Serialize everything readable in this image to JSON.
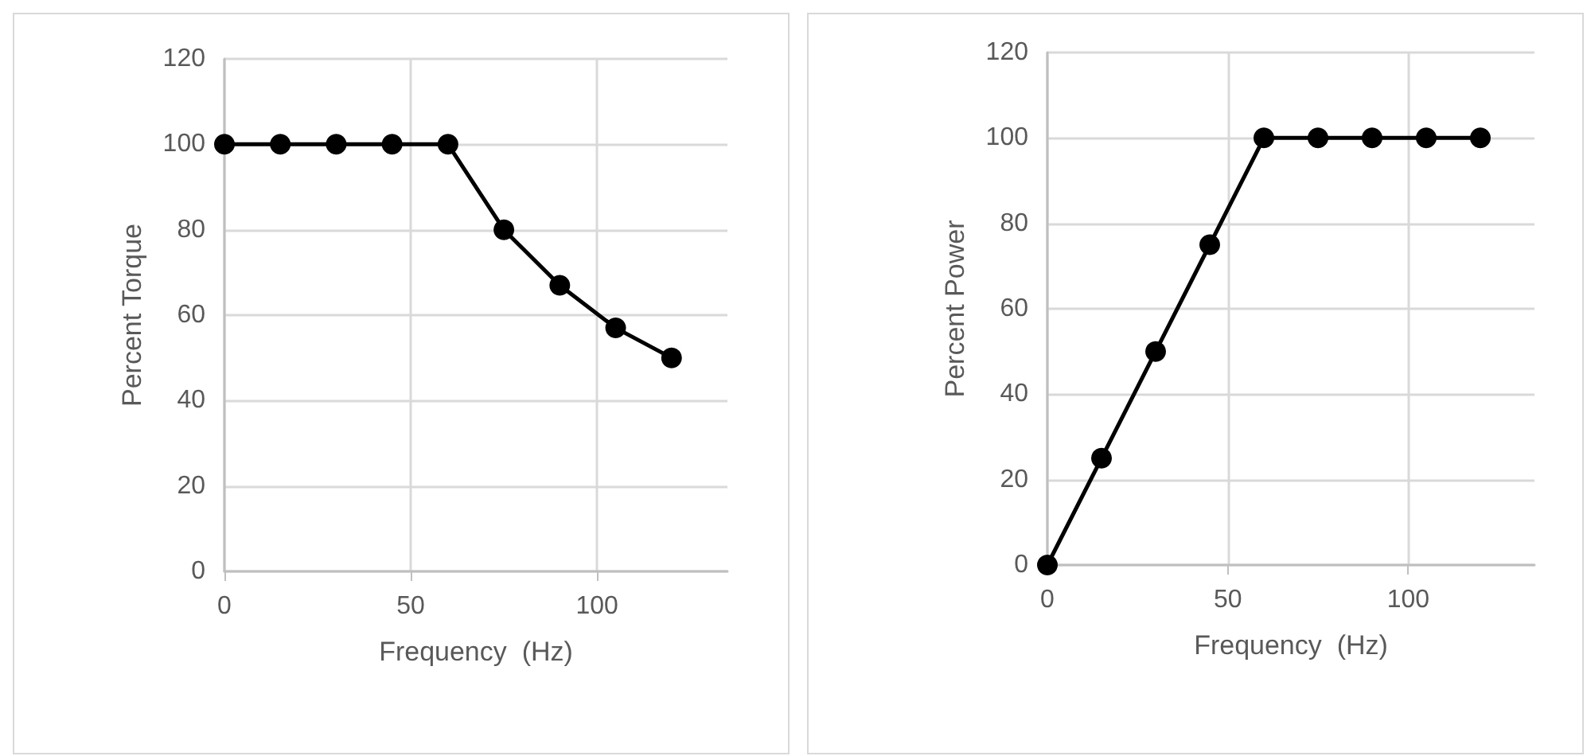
{
  "chart_data": [
    {
      "type": "line",
      "xlabel": "Frequency  (Hz)",
      "ylabel": "Percent Torque",
      "x": [
        0,
        15,
        30,
        45,
        60,
        75,
        90,
        105,
        120
      ],
      "series": [
        {
          "color": "#000000",
          "values": [
            100,
            100,
            100,
            100,
            100,
            80,
            67,
            57,
            50
          ]
        }
      ],
      "xlim": [
        0,
        135
      ],
      "xticks": [
        0,
        50,
        100
      ],
      "ylim": [
        0,
        120
      ],
      "yticks": [
        0,
        20,
        40,
        60,
        80,
        100,
        120
      ],
      "grid": true,
      "marker": "circle",
      "line_style": "solid"
    },
    {
      "type": "line",
      "xlabel": "Frequency  (Hz)",
      "ylabel": "Percent Power",
      "x": [
        0,
        15,
        30,
        45,
        60,
        75,
        90,
        105,
        120
      ],
      "series": [
        {
          "color": "#000000",
          "values": [
            0,
            25,
            50,
            75,
            100,
            100,
            100,
            100,
            100
          ]
        }
      ],
      "xlim": [
        0,
        135
      ],
      "xticks": [
        0,
        50,
        100
      ],
      "ylim": [
        0,
        120
      ],
      "yticks": [
        0,
        20,
        40,
        60,
        80,
        100,
        120
      ],
      "grid": true,
      "marker": "circle",
      "line_style": "solid"
    }
  ]
}
